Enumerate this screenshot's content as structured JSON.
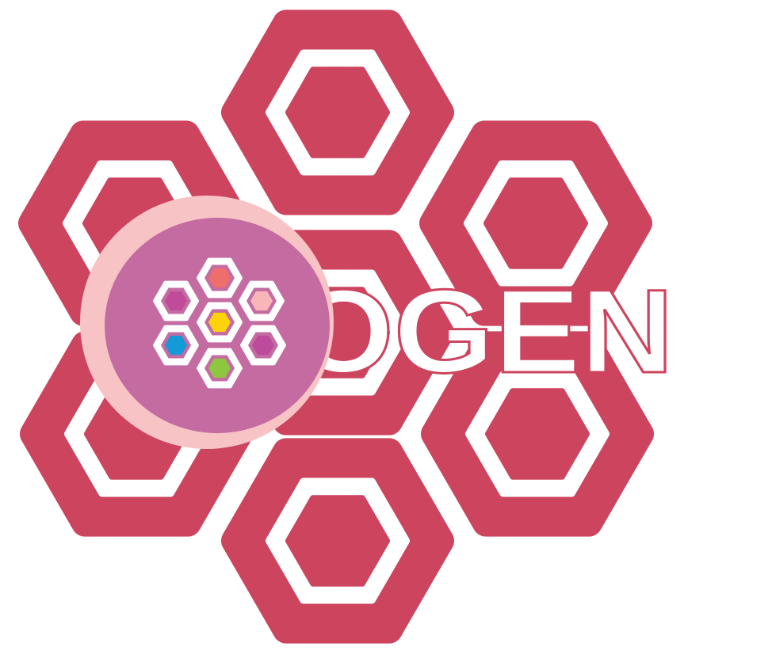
{
  "logo": {
    "wordmark": "OGEN",
    "colors": {
      "background": "#ffffff",
      "hexagon": "#cd445e",
      "hexagon_inner": "#ffffff",
      "badge_ring": "#f8c3c5",
      "badge_fill": "#c46ca1",
      "mini_outline": "#ffffff",
      "wordmark_fill": "#ffffff",
      "wordmark_stroke": "#cd445e"
    },
    "mini_hexagon_colors": {
      "top": "#ef6d6b",
      "upper_left": "#c14b9b",
      "upper_right": "#f8b6b9",
      "center": "#fcd20b",
      "lower_left": "#159ad8",
      "lower_right": "#bd4b9b",
      "bottom": "#8dc63f"
    }
  }
}
